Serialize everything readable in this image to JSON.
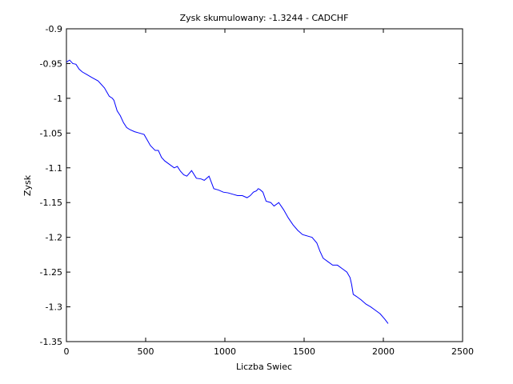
{
  "chart_data": {
    "type": "line",
    "title": "Zysk skumulowany: -1.3244 - CADCHF",
    "xlabel": "Liczba Swiec",
    "ylabel": "Zysk",
    "xlim": [
      0,
      2500
    ],
    "ylim": [
      -1.35,
      -0.9
    ],
    "xticks": [
      0,
      500,
      1000,
      1500,
      2000,
      2500
    ],
    "xtick_labels": [
      "0",
      "500",
      "1000",
      "1500",
      "2000",
      "2500"
    ],
    "yticks": [
      -0.9,
      -0.95,
      -1,
      -1.05,
      -1.1,
      -1.15,
      -1.2,
      -1.25,
      -1.3,
      -1.35
    ],
    "ytick_labels": [
      "-0.9",
      "-0.95",
      "-1",
      "-1.05",
      "-1.1",
      "-1.15",
      "-1.2",
      "-1.25",
      "-1.3",
      "-1.35"
    ],
    "grid": false,
    "line_color": "#0000ff",
    "series": [
      {
        "x": [
          0,
          20,
          40,
          60,
          80,
          100,
          130,
          160,
          200,
          240,
          270,
          290,
          300,
          320,
          340,
          360,
          380,
          400,
          430,
          460,
          490,
          510,
          530,
          560,
          580,
          600,
          620,
          650,
          680,
          700,
          720,
          740,
          760,
          790,
          820,
          850,
          870,
          900,
          930,
          960,
          990,
          1020,
          1050,
          1080,
          1110,
          1140,
          1160,
          1180,
          1200,
          1210,
          1220,
          1240,
          1260,
          1290,
          1310,
          1340,
          1370,
          1400,
          1430,
          1460,
          1490,
          1520,
          1550,
          1580,
          1600,
          1620,
          1650,
          1680,
          1710,
          1740,
          1770,
          1790,
          1800,
          1810,
          1830,
          1860,
          1890,
          1920,
          1950,
          1980,
          2010,
          2030
        ],
        "y": [
          -0.948,
          -0.945,
          -0.95,
          -0.951,
          -0.958,
          -0.962,
          -0.966,
          -0.97,
          -0.975,
          -0.985,
          -0.997,
          -1.0,
          -1.003,
          -1.018,
          -1.025,
          -1.035,
          -1.042,
          -1.045,
          -1.048,
          -1.05,
          -1.052,
          -1.06,
          -1.068,
          -1.075,
          -1.075,
          -1.085,
          -1.09,
          -1.095,
          -1.1,
          -1.098,
          -1.105,
          -1.11,
          -1.112,
          -1.104,
          -1.115,
          -1.116,
          -1.118,
          -1.112,
          -1.13,
          -1.132,
          -1.135,
          -1.136,
          -1.138,
          -1.14,
          -1.14,
          -1.143,
          -1.14,
          -1.135,
          -1.133,
          -1.13,
          -1.131,
          -1.135,
          -1.148,
          -1.15,
          -1.155,
          -1.15,
          -1.16,
          -1.172,
          -1.182,
          -1.19,
          -1.196,
          -1.198,
          -1.2,
          -1.208,
          -1.22,
          -1.23,
          -1.235,
          -1.24,
          -1.24,
          -1.245,
          -1.25,
          -1.258,
          -1.268,
          -1.282,
          -1.285,
          -1.29,
          -1.296,
          -1.3,
          -1.305,
          -1.31,
          -1.318,
          -1.324
        ]
      }
    ]
  }
}
